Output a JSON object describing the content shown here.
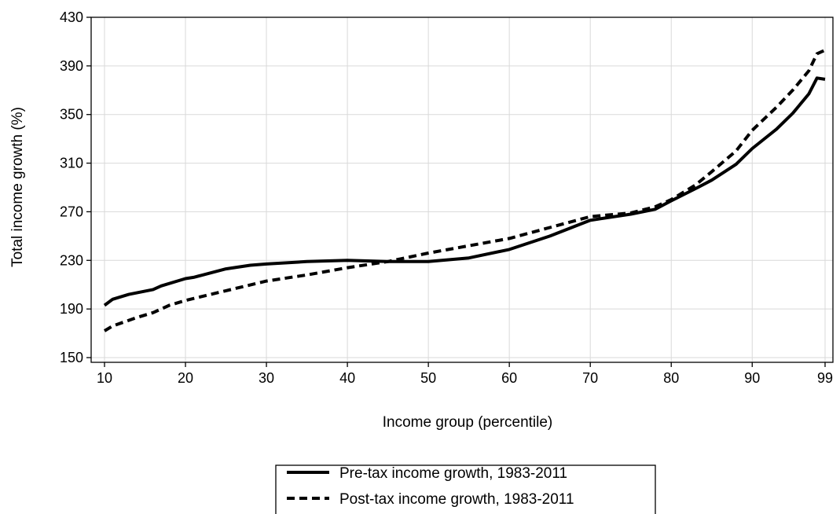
{
  "chart_data": {
    "type": "line",
    "title": "",
    "xlabel": "Income group (percentile)",
    "ylabel": "Total income growth (%)",
    "xlim": [
      10,
      99
    ],
    "ylim": [
      150,
      430
    ],
    "x_ticks": [
      10,
      20,
      30,
      40,
      50,
      60,
      70,
      80,
      90,
      99
    ],
    "y_ticks": [
      150,
      190,
      230,
      270,
      310,
      350,
      390,
      430
    ],
    "grid": true,
    "legend_position": "bottom",
    "series": [
      {
        "name": "Pre-tax income growth, 1983-2011",
        "style": "solid",
        "color": "#000000",
        "x": [
          10,
          11,
          13,
          16,
          17,
          20,
          21,
          25,
          28,
          30,
          35,
          40,
          45,
          50,
          55,
          60,
          65,
          70,
          75,
          78,
          80,
          83,
          85,
          88,
          90,
          93,
          95,
          97,
          98,
          99
        ],
        "y": [
          193,
          198,
          202,
          206,
          209,
          215,
          216,
          223,
          226,
          227,
          229,
          230,
          229,
          229,
          232,
          239,
          250,
          263,
          268,
          272,
          279,
          289,
          296,
          309,
          322,
          338,
          351,
          367,
          380,
          379
        ]
      },
      {
        "name": "Post-tax income growth, 1983-2011",
        "style": "dashed",
        "color": "#000000",
        "x": [
          10,
          11,
          14,
          16,
          18,
          20,
          25,
          30,
          35,
          40,
          45,
          50,
          55,
          60,
          65,
          70,
          75,
          78,
          80,
          83,
          85,
          88,
          90,
          93,
          95,
          97,
          98,
          99
        ],
        "y": [
          172,
          176,
          183,
          187,
          193,
          197,
          205,
          213,
          218,
          224,
          229,
          236,
          242,
          248,
          257,
          266,
          269,
          274,
          280,
          292,
          303,
          320,
          337,
          356,
          370,
          386,
          400,
          403
        ]
      }
    ]
  }
}
